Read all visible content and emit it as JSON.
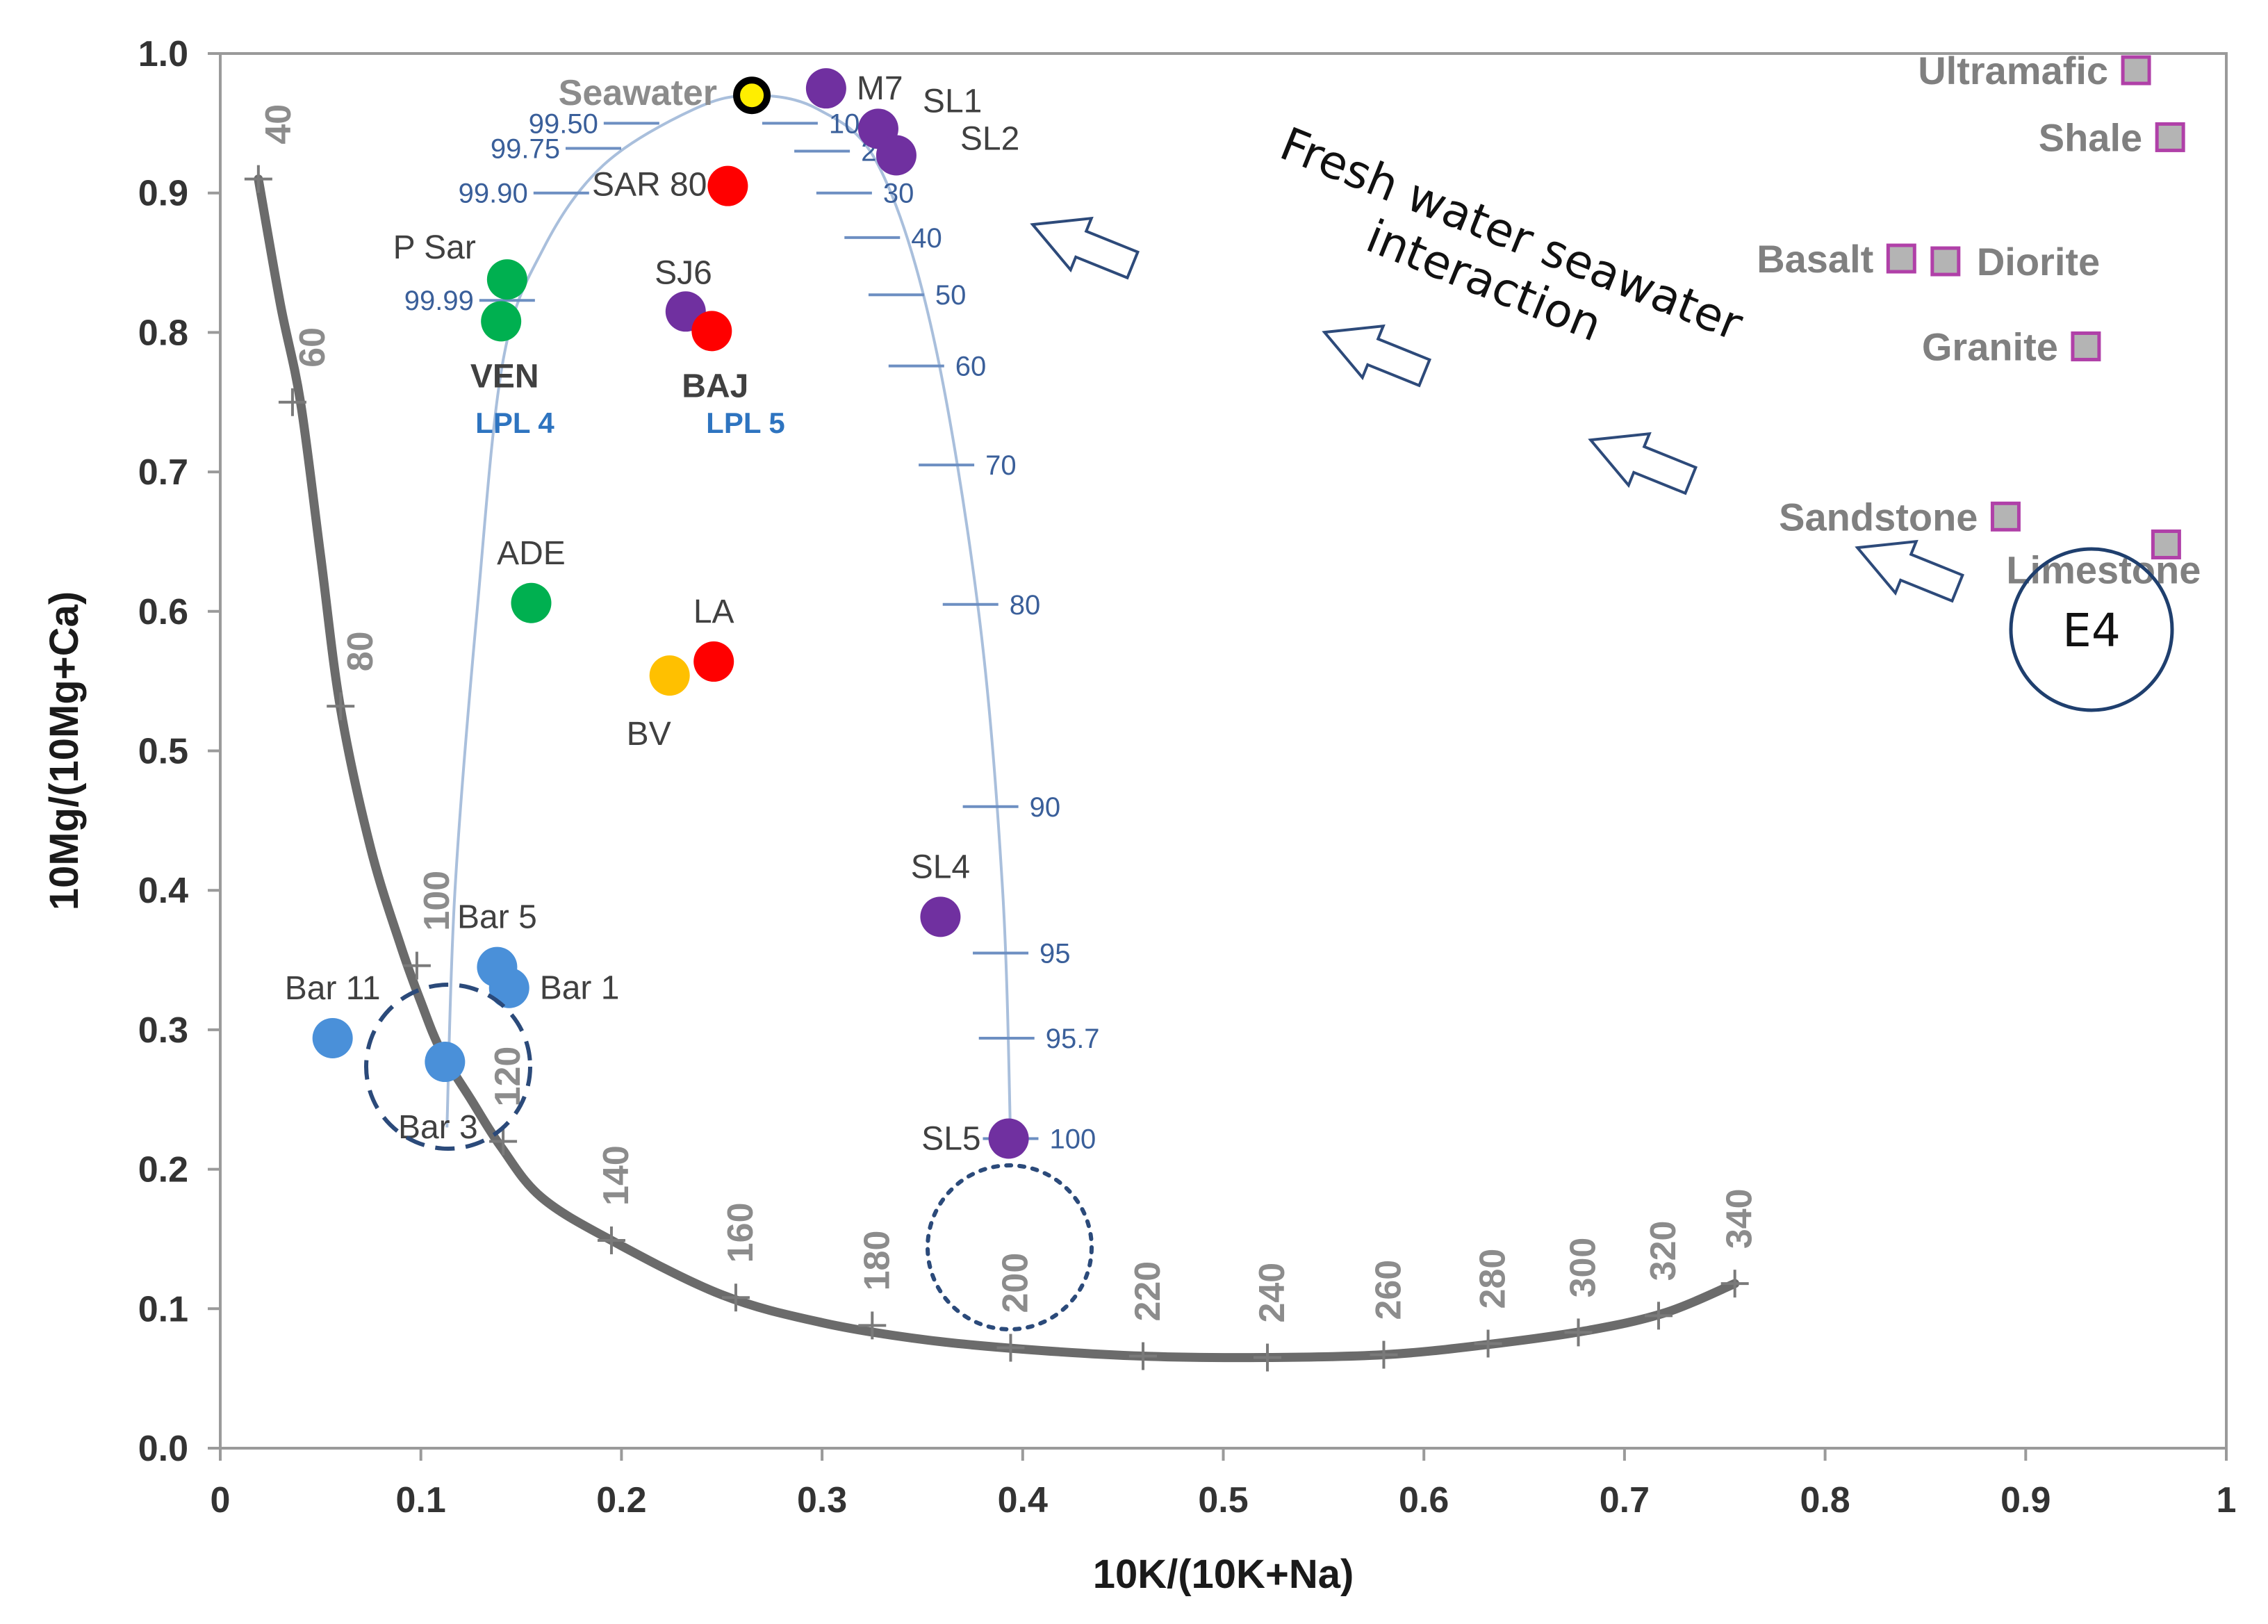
{
  "chart_data": {
    "type": "scatter",
    "title": "",
    "xlabel": "10K/(10K+Na)",
    "ylabel": "10Mg/(10Mg+Ca)",
    "xlim": [
      0,
      1
    ],
    "ylim": [
      0,
      1
    ],
    "x_ticks": [
      "0",
      "0.1",
      "0.2",
      "0.3",
      "0.4",
      "0.5",
      "0.6",
      "0.7",
      "0.8",
      "0.9",
      "1"
    ],
    "y_ticks": [
      "0.0",
      "0.1",
      "0.2",
      "0.3",
      "0.4",
      "0.5",
      "0.6",
      "0.7",
      "0.8",
      "0.9",
      "1.0"
    ],
    "points": [
      {
        "label": "Seawater",
        "x": 0.265,
        "y": 0.97,
        "color": "#ffee00",
        "stroke": "#000000",
        "label_side": "left",
        "label_style": "gray"
      },
      {
        "label": "M7",
        "x": 0.302,
        "y": 0.975,
        "color": "#7030a0",
        "label_side": "right"
      },
      {
        "label": "SL1",
        "x": 0.328,
        "y": 0.946,
        "color": "#7030a0",
        "label_side": "right-up"
      },
      {
        "label": "SL2",
        "x": 0.337,
        "y": 0.927,
        "color": "#7030a0",
        "label_side": "right-down"
      },
      {
        "label": "SAR 80",
        "x": 0.253,
        "y": 0.905,
        "color": "#ff0000",
        "label_side": "left"
      },
      {
        "label": "P Sar",
        "x": 0.143,
        "y": 0.838,
        "color": "#00b050",
        "label_side": "above-left"
      },
      {
        "label": "VEN",
        "x": 0.14,
        "y": 0.808,
        "color": "#00b050",
        "label_side": "below"
      },
      {
        "label": "SJ6",
        "x": 0.232,
        "y": 0.815,
        "color": "#7030a0",
        "label_side": "above-left"
      },
      {
        "label": "BAJ",
        "x": 0.245,
        "y": 0.801,
        "color": "#ff0000",
        "label_side": "below"
      },
      {
        "label": "ADE",
        "x": 0.155,
        "y": 0.606,
        "color": "#00b050",
        "label_side": "above"
      },
      {
        "label": "LA",
        "x": 0.246,
        "y": 0.564,
        "color": "#ff0000",
        "label_side": "above"
      },
      {
        "label": "BV",
        "x": 0.224,
        "y": 0.554,
        "color": "#ffc000",
        "label_side": "below-left"
      },
      {
        "label": "SL4",
        "x": 0.359,
        "y": 0.381,
        "color": "#7030a0",
        "label_side": "above"
      },
      {
        "label": "SL5",
        "x": 0.393,
        "y": 0.222,
        "color": "#7030a0",
        "label_side": "left"
      },
      {
        "label": "Bar 5",
        "x": 0.138,
        "y": 0.345,
        "color": "#4a90d9",
        "label_side": "above"
      },
      {
        "label": "Bar 1",
        "x": 0.144,
        "y": 0.33,
        "color": "#4a90d9",
        "label_side": "right"
      },
      {
        "label": "Bar 11",
        "x": 0.056,
        "y": 0.294,
        "color": "#4a90d9",
        "label_side": "above"
      },
      {
        "label": "Bar 3",
        "x": 0.112,
        "y": 0.277,
        "color": "#4a90d9",
        "label_side": "below"
      }
    ],
    "group_labels": [
      {
        "text": "LPL 4",
        "x": 0.133,
        "y": 0.735
      },
      {
        "text": "LPL 5",
        "x": 0.248,
        "y": 0.735
      }
    ],
    "rocks": [
      {
        "label": "Ultramafic",
        "x": 0.955,
        "y": 0.988
      },
      {
        "label": "Shale",
        "x": 0.972,
        "y": 0.94
      },
      {
        "label": "Basalt",
        "x": 0.838,
        "y": 0.853
      },
      {
        "label": "Diorite",
        "x": 0.86,
        "y": 0.851
      },
      {
        "label": "Granite",
        "x": 0.93,
        "y": 0.79
      },
      {
        "label": "Sandstone",
        "x": 0.89,
        "y": 0.668
      },
      {
        "label": "Limestone",
        "x": 0.97,
        "y": 0.648
      }
    ],
    "mixing_curve": {
      "x": [
        0.113,
        0.117,
        0.128,
        0.141,
        0.161,
        0.191,
        0.236,
        0.266,
        0.298,
        0.328,
        0.355,
        0.378,
        0.39,
        0.394
      ],
      "y": [
        0.23,
        0.4,
        0.6,
        0.78,
        0.86,
        0.92,
        0.96,
        0.97,
        0.96,
        0.92,
        0.8,
        0.6,
        0.4,
        0.22
      ],
      "ticks": [
        {
          "label": "99.99",
          "x": 0.143,
          "y": 0.823,
          "side": "left"
        },
        {
          "label": "99.90",
          "x": 0.17,
          "y": 0.9,
          "side": "left"
        },
        {
          "label": "99.75",
          "x": 0.186,
          "y": 0.932,
          "side": "left"
        },
        {
          "label": "99.50",
          "x": 0.205,
          "y": 0.95,
          "side": "left"
        },
        {
          "label": "10",
          "x": 0.284,
          "y": 0.95,
          "side": "right"
        },
        {
          "label": "20",
          "x": 0.3,
          "y": 0.93,
          "side": "right"
        },
        {
          "label": "30",
          "x": 0.311,
          "y": 0.9,
          "side": "right"
        },
        {
          "label": "40",
          "x": 0.325,
          "y": 0.868,
          "side": "right"
        },
        {
          "label": "50",
          "x": 0.337,
          "y": 0.827,
          "side": "right"
        },
        {
          "label": "60",
          "x": 0.347,
          "y": 0.776,
          "side": "right"
        },
        {
          "label": "70",
          "x": 0.362,
          "y": 0.705,
          "side": "right"
        },
        {
          "label": "80",
          "x": 0.374,
          "y": 0.605,
          "side": "right"
        },
        {
          "label": "90",
          "x": 0.384,
          "y": 0.46,
          "side": "right"
        },
        {
          "label": "95",
          "x": 0.389,
          "y": 0.355,
          "side": "right"
        },
        {
          "label": "95.7",
          "x": 0.392,
          "y": 0.294,
          "side": "right"
        },
        {
          "label": "100",
          "x": 0.394,
          "y": 0.222,
          "side": "right"
        }
      ]
    },
    "geothermometer_curve": {
      "x": [
        0.019,
        0.03,
        0.04,
        0.05,
        0.06,
        0.075,
        0.09,
        0.1,
        0.11,
        0.125,
        0.14,
        0.16,
        0.195,
        0.25,
        0.3,
        0.35,
        0.4,
        0.46,
        0.52,
        0.58,
        0.63,
        0.68,
        0.72,
        0.755
      ],
      "y": [
        0.91,
        0.82,
        0.75,
        0.64,
        0.53,
        0.43,
        0.36,
        0.32,
        0.285,
        0.25,
        0.216,
        0.18,
        0.149,
        0.11,
        0.09,
        0.078,
        0.071,
        0.066,
        0.065,
        0.067,
        0.074,
        0.084,
        0.097,
        0.118
      ],
      "temp_ticks": [
        {
          "label": "40",
          "x": 0.019,
          "y": 0.91
        },
        {
          "label": "60",
          "x": 0.036,
          "y": 0.75
        },
        {
          "label": "80",
          "x": 0.06,
          "y": 0.532
        },
        {
          "label": "100",
          "x": 0.098,
          "y": 0.346
        },
        {
          "label": "120",
          "x": 0.141,
          "y": 0.22
        },
        {
          "label": "140",
          "x": 0.195,
          "y": 0.149
        },
        {
          "label": "160",
          "x": 0.257,
          "y": 0.108
        },
        {
          "label": "180",
          "x": 0.325,
          "y": 0.088
        },
        {
          "label": "200",
          "x": 0.394,
          "y": 0.072
        },
        {
          "label": "220",
          "x": 0.46,
          "y": 0.066
        },
        {
          "label": "240",
          "x": 0.522,
          "y": 0.065
        },
        {
          "label": "260",
          "x": 0.58,
          "y": 0.067
        },
        {
          "label": "280",
          "x": 0.632,
          "y": 0.075
        },
        {
          "label": "300",
          "x": 0.677,
          "y": 0.083
        },
        {
          "label": "320",
          "x": 0.717,
          "y": 0.095
        },
        {
          "label": "340",
          "x": 0.755,
          "y": 0.118
        }
      ]
    },
    "annotations": {
      "fresh_water_line1": "Fresh water seawater",
      "fresh_water_line2": "interaction",
      "e4_label": "E4"
    }
  }
}
